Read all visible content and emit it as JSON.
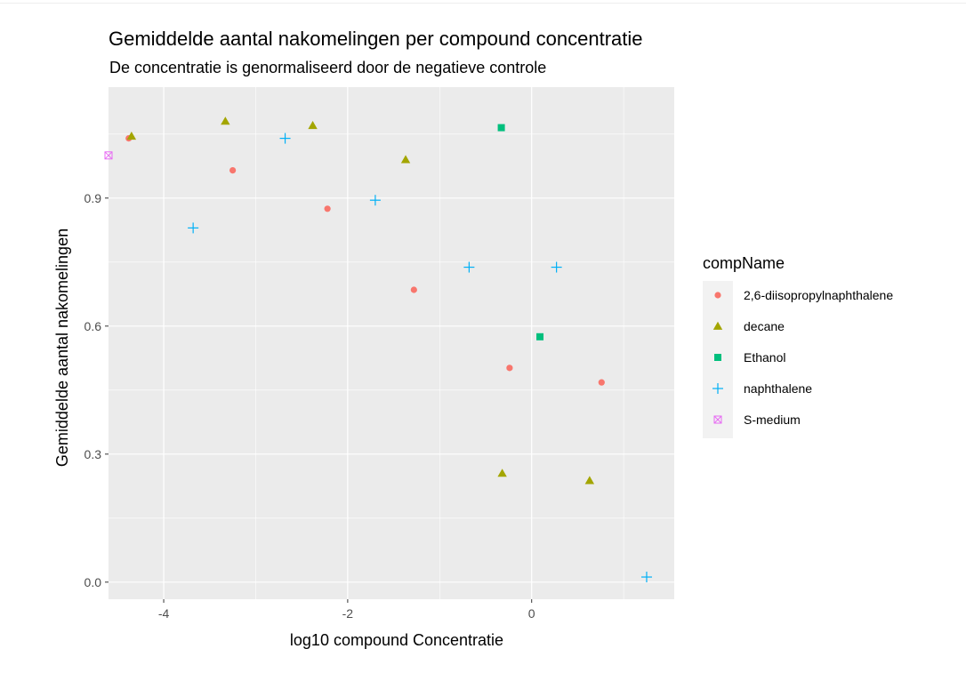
{
  "chart_data": {
    "type": "scatter",
    "title": "Gemiddelde aantal nakomelingen per compound concentratie",
    "subtitle": "De concentratie is genormaliseerd door de negatieve controle",
    "xlabel": "log10  compound Concentratie",
    "ylabel": "Gemiddelde aantal nakomelingen",
    "xlim": [
      -4.6,
      1.55
    ],
    "ylim": [
      -0.04,
      1.16
    ],
    "x_ticks": [
      -4,
      -2,
      0
    ],
    "x_tick_labels": [
      "-4",
      "-2",
      "0"
    ],
    "y_ticks": [
      0.0,
      0.3,
      0.6,
      0.9
    ],
    "y_tick_labels": [
      "0.0",
      "0.3",
      "0.6",
      "0.9"
    ],
    "grid": true,
    "panel_background": "#ebebeb",
    "legend": {
      "title": "compName",
      "position": "right"
    },
    "series": [
      {
        "name": "2,6-diisopropylnaphthalene",
        "color": "#f8766d",
        "shape": "circle",
        "points": [
          [
            -4.38,
            1.04
          ],
          [
            -3.25,
            0.965
          ],
          [
            -2.22,
            0.875
          ],
          [
            -1.28,
            0.685
          ],
          [
            -0.24,
            0.502
          ],
          [
            0.76,
            0.468
          ]
        ]
      },
      {
        "name": "decane",
        "color": "#a3a500",
        "shape": "triangle",
        "points": [
          [
            -4.35,
            1.045
          ],
          [
            -3.33,
            1.08
          ],
          [
            -2.38,
            1.07
          ],
          [
            -1.37,
            0.99
          ],
          [
            -0.32,
            0.255
          ],
          [
            0.63,
            0.238
          ]
        ]
      },
      {
        "name": "Ethanol",
        "color": "#00bf7d",
        "shape": "square",
        "points": [
          [
            -0.33,
            1.065
          ],
          [
            0.09,
            0.575
          ]
        ]
      },
      {
        "name": "naphthalene",
        "color": "#00b0f6",
        "shape": "plus",
        "points": [
          [
            -3.68,
            0.83
          ],
          [
            -2.68,
            1.04
          ],
          [
            -1.7,
            0.895
          ],
          [
            -0.68,
            0.738
          ],
          [
            0.27,
            0.738
          ],
          [
            1.25,
            0.012
          ]
        ]
      },
      {
        "name": "S-medium",
        "color": "#e76bf3",
        "shape": "boxx",
        "points": [
          [
            -4.6,
            1.0
          ]
        ]
      }
    ]
  }
}
